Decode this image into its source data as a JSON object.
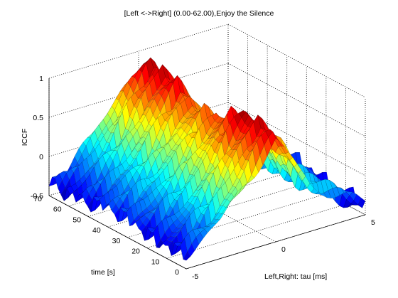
{
  "chart_data": {
    "type": "surface",
    "title": "[Left <->Right] (0.00-62.00),Enjoy the Silence",
    "xlabel": "Left,Right: tau [ms]",
    "ylabel": "time [s]",
    "zlabel": "ICCF",
    "x_ticks": [
      "-5",
      "0",
      "5"
    ],
    "y_ticks": [
      "0",
      "10",
      "20",
      "30",
      "40",
      "50",
      "60",
      "70"
    ],
    "z_ticks": [
      "-0.5",
      "0",
      "0.5",
      "1"
    ],
    "xlim": [
      -5,
      5
    ],
    "ylim": [
      0,
      70
    ],
    "zlim": [
      -0.5,
      1
    ],
    "grid": true,
    "colormap": "jet",
    "surface_profile": {
      "tau_ms": [
        -5,
        -4,
        -3,
        -2,
        -1,
        0,
        1,
        2,
        3,
        4,
        5
      ],
      "iccf_typical": [
        -0.35,
        -0.2,
        0.0,
        0.3,
        0.65,
        0.92,
        0.55,
        0.05,
        -0.05,
        -0.25,
        -0.4
      ]
    }
  }
}
